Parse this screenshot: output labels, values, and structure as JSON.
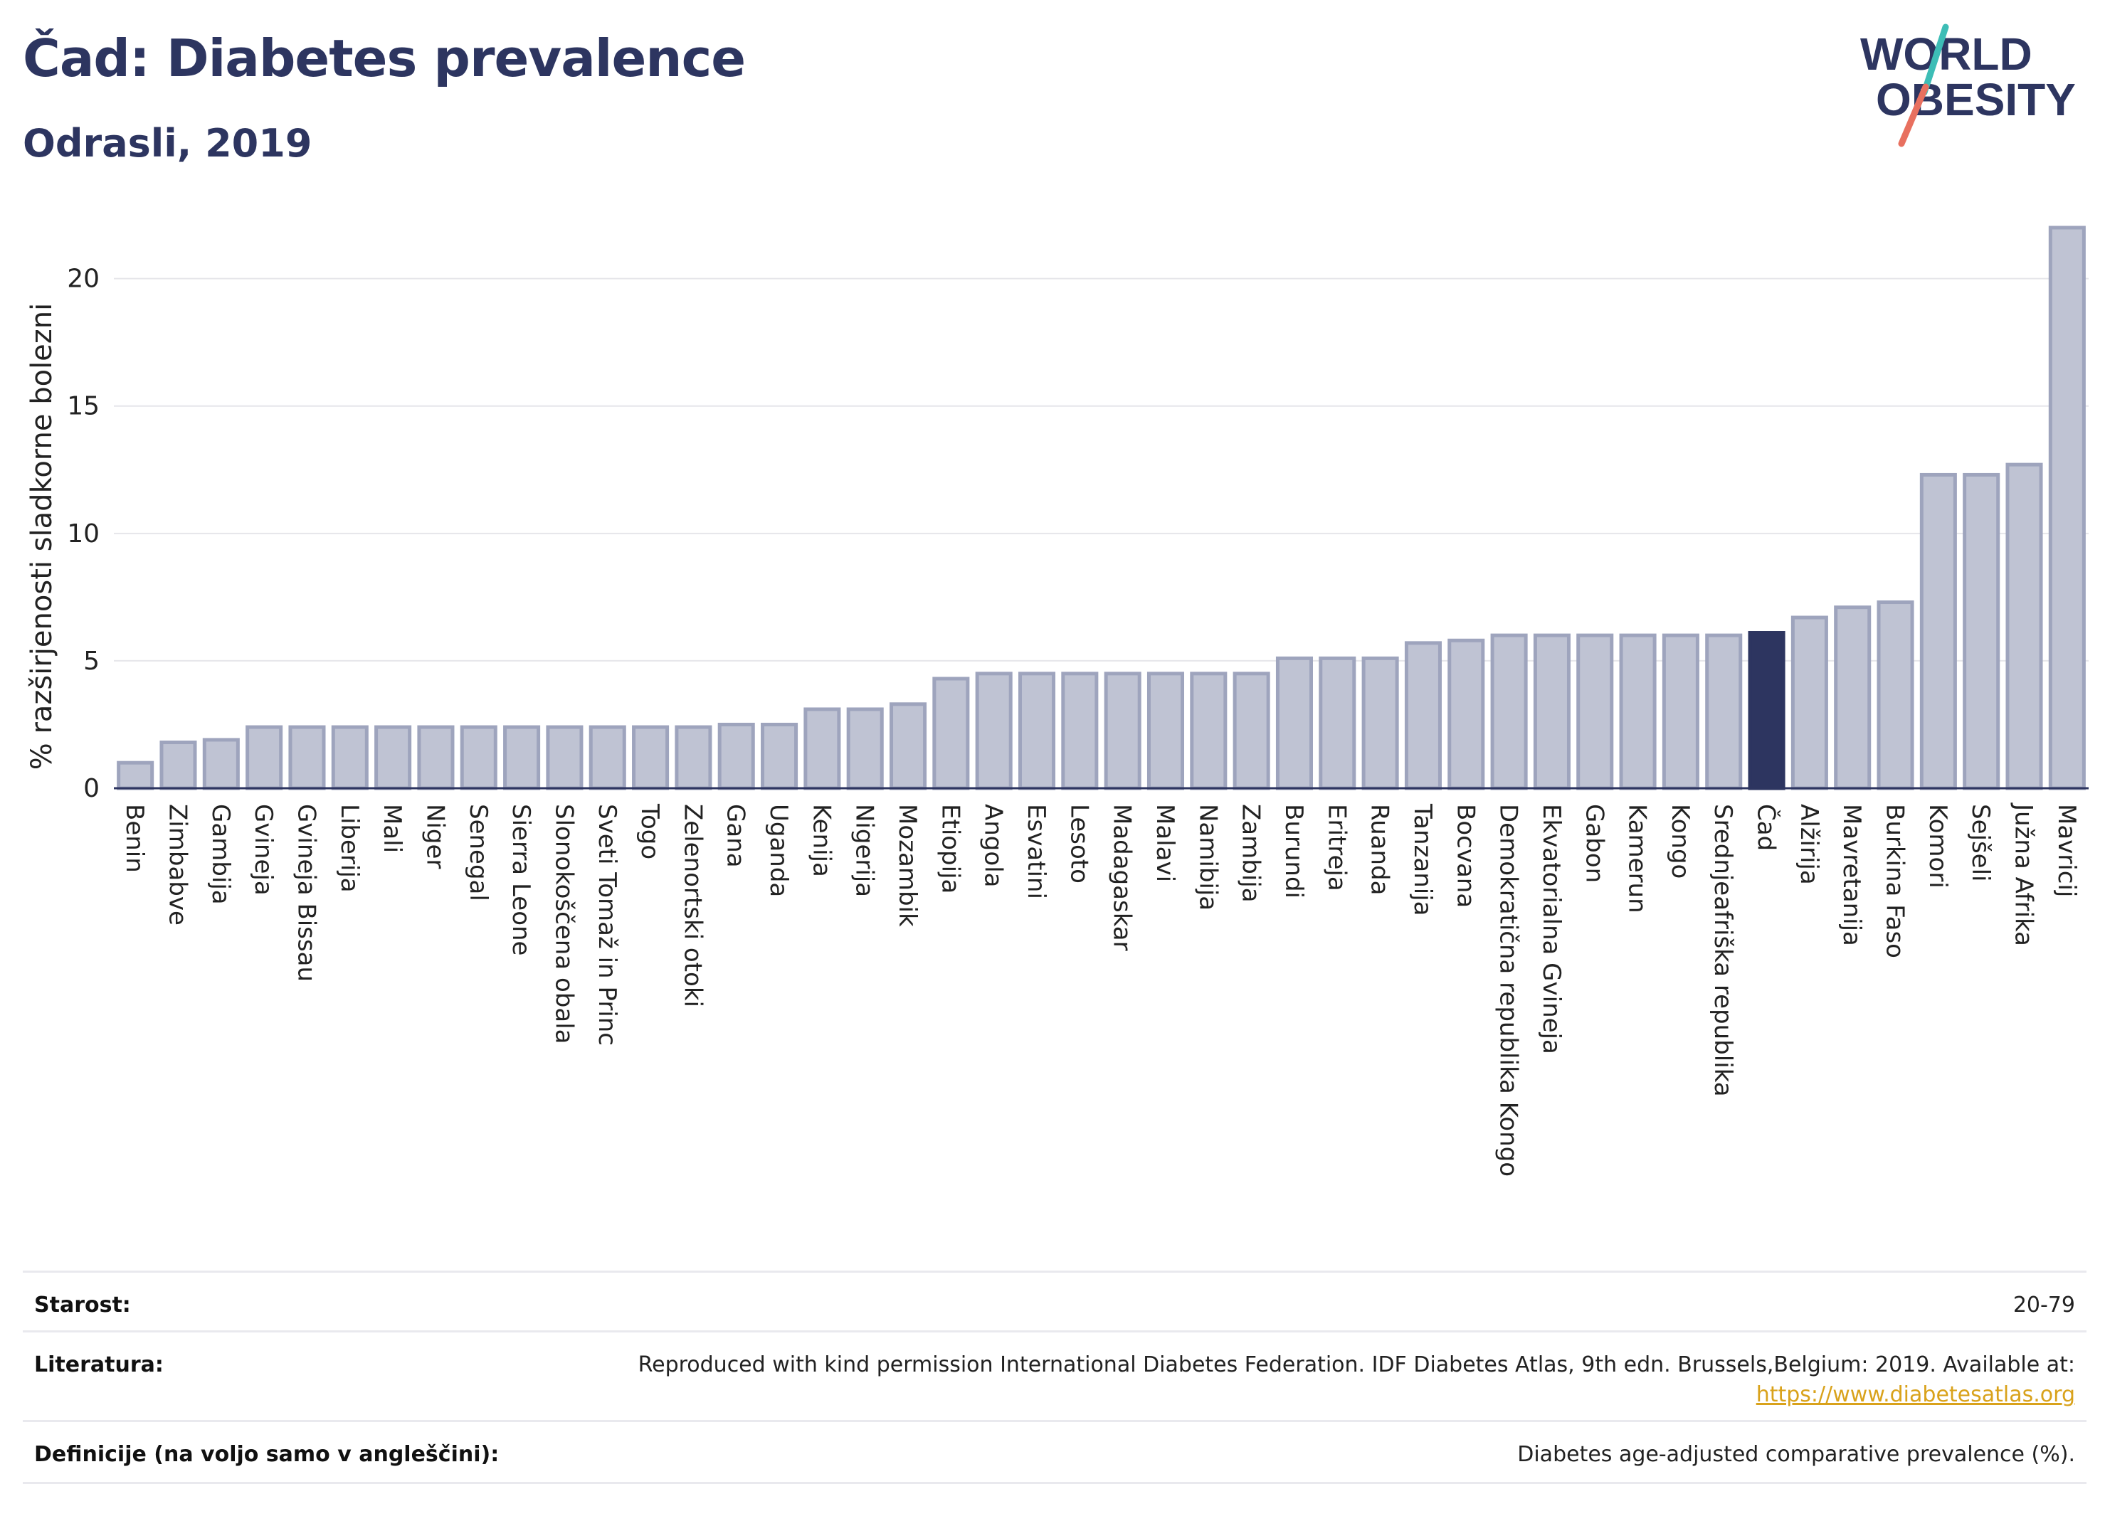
{
  "header": {
    "title": "Čad: Diabetes prevalence",
    "subtitle": "Odrasli, 2019",
    "logo_line1": "WORLD",
    "logo_line2": "OBESITY"
  },
  "colors": {
    "bar_default": "#bfc3d3",
    "bar_default_border": "#9ea4bd",
    "bar_highlight": "#2d3560",
    "axis_text": "#222222",
    "grid": "#e6e6ea",
    "brand_navy": "#2d3560",
    "logo_teal": "#3dbdb6",
    "logo_coral": "#e8705f"
  },
  "chart_data": {
    "type": "bar",
    "title": "Čad: Diabetes prevalence",
    "subtitle": "Odrasli, 2019",
    "ylabel": "% razširjenosti sladkorne bolezni",
    "ylim": [
      0,
      22
    ],
    "yticks": [
      0,
      5,
      10,
      15,
      20
    ],
    "grid": true,
    "highlight": "Čad",
    "categories": [
      "Benin",
      "Zimbabve",
      "Gambija",
      "Gvineja",
      "Gvineja Bissau",
      "Liberija",
      "Mali",
      "Niger",
      "Senegal",
      "Sierra Leone",
      "Slonokoščena obala",
      "Sveti Tomaž in Princ",
      "Togo",
      "Zelenortski otoki",
      "Gana",
      "Uganda",
      "Kenija",
      "Nigerija",
      "Mozambik",
      "Etiopija",
      "Angola",
      "Esvatini",
      "Lesoto",
      "Madagaskar",
      "Malavi",
      "Namibija",
      "Zambija",
      "Burundi",
      "Eritreja",
      "Ruanda",
      "Tanzanija",
      "Bocvana",
      "Demokratična republika Kongo",
      "Ekvatorialna Gvineja",
      "Gabon",
      "Kamerun",
      "Kongo",
      "Srednjeafriška republika",
      "Čad",
      "Alžirija",
      "Mavretanija",
      "Burkina Faso",
      "Komori",
      "Sejšeli",
      "Južna Afrika",
      "Mavricij"
    ],
    "values": [
      1.0,
      1.8,
      1.9,
      2.4,
      2.4,
      2.4,
      2.4,
      2.4,
      2.4,
      2.4,
      2.4,
      2.4,
      2.4,
      2.4,
      2.5,
      2.5,
      3.1,
      3.1,
      3.3,
      4.3,
      4.5,
      4.5,
      4.5,
      4.5,
      4.5,
      4.5,
      4.5,
      5.1,
      5.1,
      5.1,
      5.7,
      5.8,
      6.0,
      6.0,
      6.0,
      6.0,
      6.0,
      6.0,
      6.1,
      6.7,
      7.1,
      7.3,
      12.3,
      12.3,
      12.7,
      22.0
    ]
  },
  "footer": {
    "age_label": "Starost:",
    "age_value": "20-79",
    "lit_label": "Literatura:",
    "lit_text": "Reproduced with kind permission International Diabetes Federation. IDF Diabetes Atlas, 9th edn. Brussels,Belgium: 2019. Available at:",
    "lit_link": "https://www.diabetesatlas.org",
    "def_label": "Definicije (na voljo samo v angleščini):",
    "def_value": "Diabetes age-adjusted comparative prevalence (%)."
  }
}
